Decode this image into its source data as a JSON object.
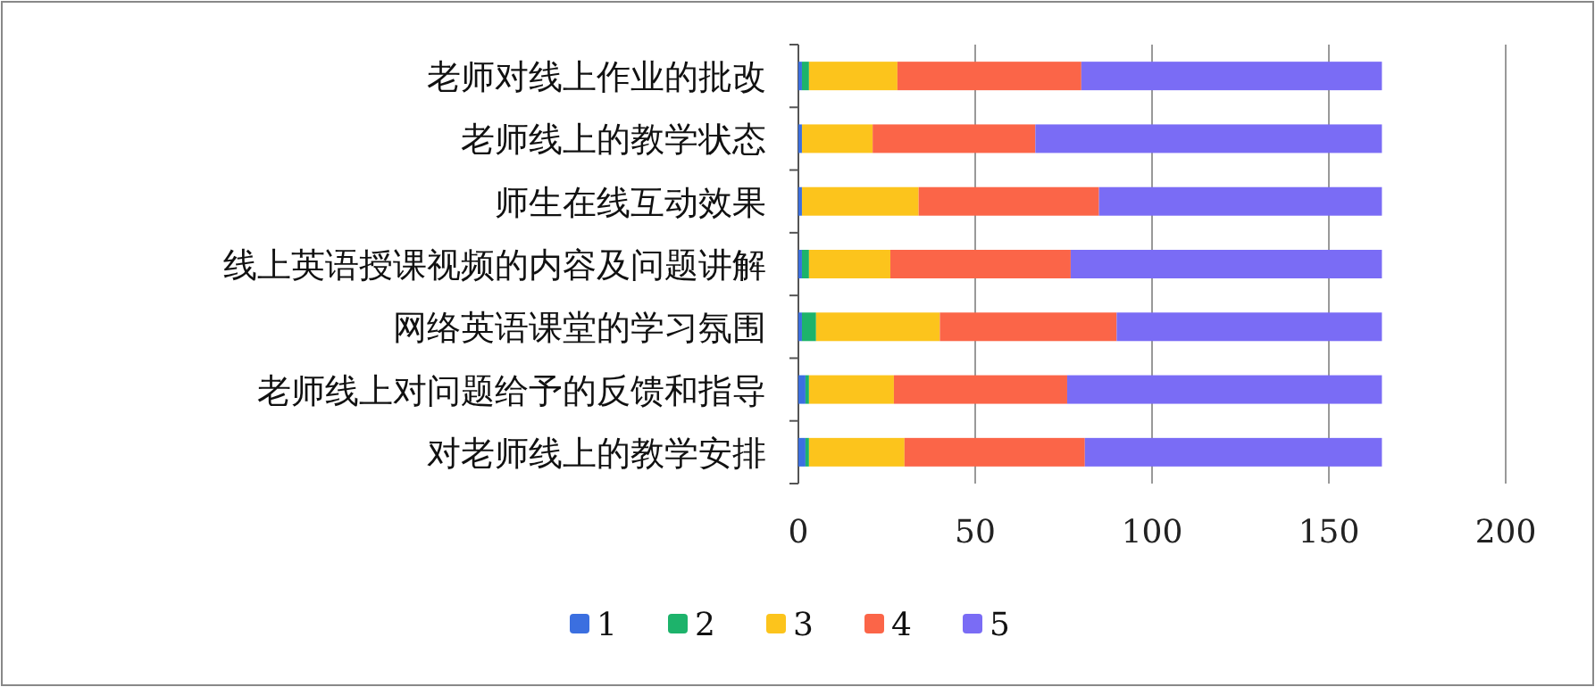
{
  "chart_data": {
    "type": "bar",
    "orientation": "horizontal",
    "stacked": true,
    "categories": [
      "老师对线上作业的批改",
      "老师线上的教学状态",
      "师生在线互动效果",
      "线上英语授课视频的内容及问题讲解",
      "网络英语课堂的学习氛围",
      "老师线上对问题给予的反馈和指导",
      "对老师线上的教学安排"
    ],
    "series": [
      {
        "name": "1",
        "color": "#3b6fe0",
        "values": [
          1,
          1,
          1,
          1,
          1,
          2,
          2
        ]
      },
      {
        "name": "2",
        "color": "#1db36b",
        "values": [
          2,
          0,
          0,
          2,
          4,
          1,
          1
        ]
      },
      {
        "name": "3",
        "color": "#fcc41c",
        "values": [
          25,
          20,
          33,
          23,
          35,
          24,
          27
        ]
      },
      {
        "name": "4",
        "color": "#fb6548",
        "values": [
          52,
          46,
          51,
          51,
          50,
          49,
          51
        ]
      },
      {
        "name": "5",
        "color": "#7a6cf5",
        "values": [
          85,
          98,
          80,
          88,
          75,
          89,
          84
        ]
      }
    ],
    "xlim": [
      0,
      200
    ],
    "xticks": [
      0,
      50,
      100,
      150,
      200
    ],
    "grid": "x",
    "legend": "bottom"
  }
}
